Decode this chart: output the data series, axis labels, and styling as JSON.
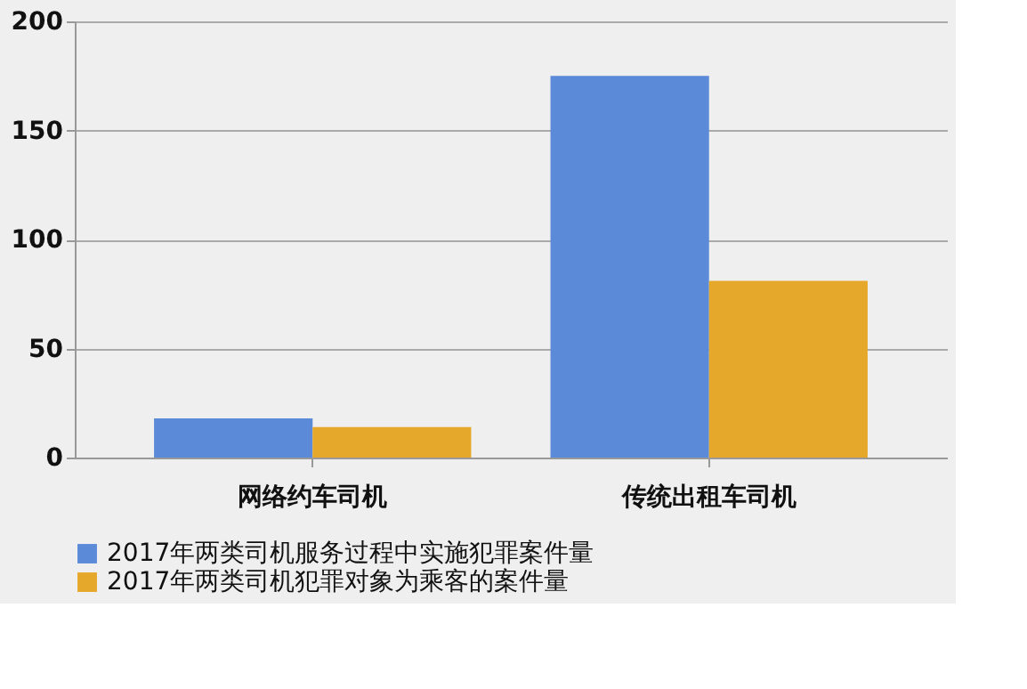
{
  "chart_data": {
    "type": "bar",
    "categories": [
      "网络约车司机",
      "传统出租车司机"
    ],
    "series": [
      {
        "name": "2017年两类司机服务过程中实施犯罪案件量",
        "color": "#5b8ad9",
        "values": [
          18,
          175
        ]
      },
      {
        "name": "2017年两类司机犯罪对象为乘客的案件量",
        "color": "#e5a82a",
        "values": [
          14,
          81
        ]
      }
    ],
    "ylim": [
      0,
      200
    ],
    "yticks": [
      0,
      50,
      100,
      150,
      200
    ],
    "grid": "y",
    "legend": "bottom"
  }
}
